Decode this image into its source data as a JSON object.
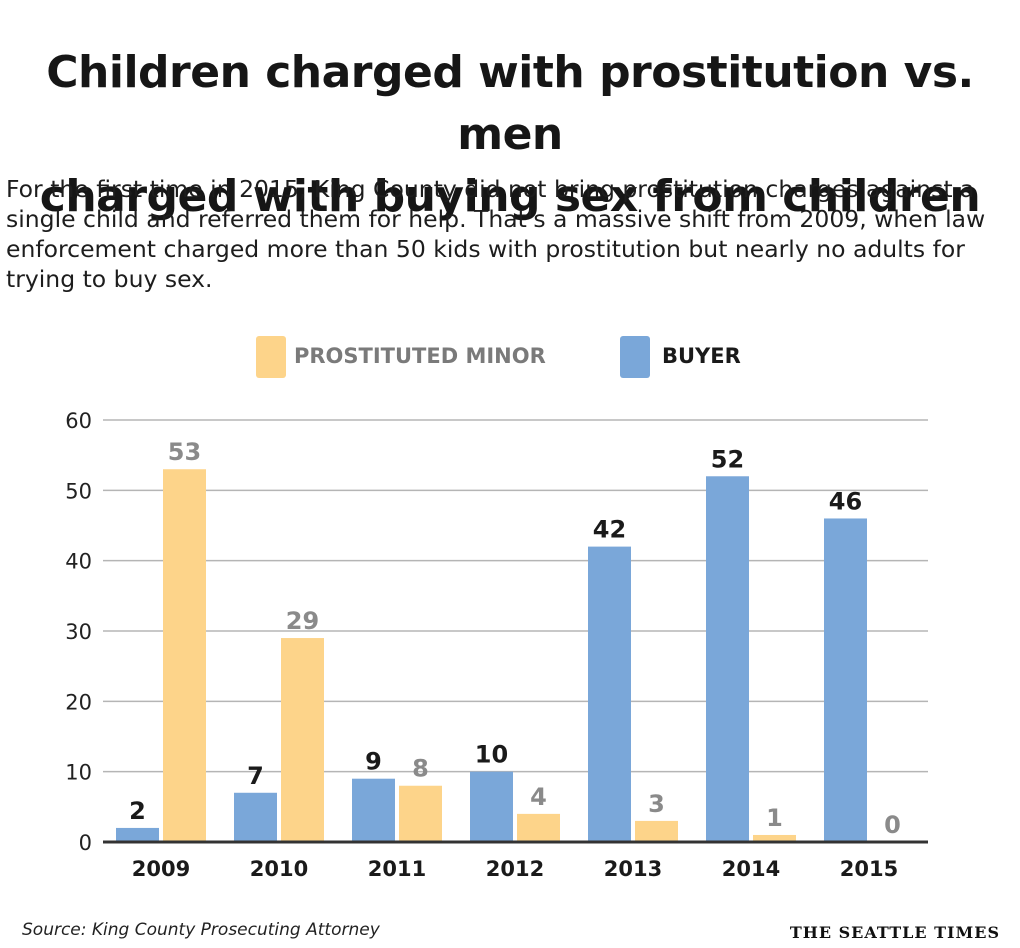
{
  "header": {
    "title_line1": "Children charged with prostitution vs. men",
    "title_line2": "charged with buying sex from children",
    "subtitle": "For the first time in 2015, King County did not bring prostitution charges against a single child and referred them for help. That's a massive shift from 2009, when law enforcement charged more than 50 kids with prostitution but nearly no adults for trying to buy sex."
  },
  "footer": {
    "source": "Source: King County Prosecuting Attorney",
    "brand": "THE SEATTLE TIMES"
  },
  "colors": {
    "minor": "#fdd48a",
    "buyer": "#7aa7d9",
    "minor_label": "#8a8a8a",
    "buyer_label": "#1a1a1a",
    "grid": "#b5b5b5",
    "axis": "#333333"
  },
  "chart_data": {
    "type": "bar",
    "title": "Children charged with prostitution vs. men charged with buying sex from children",
    "categories": [
      "2009",
      "2010",
      "2011",
      "2012",
      "2013",
      "2014",
      "2015"
    ],
    "series": [
      {
        "name": "BUYER",
        "values": [
          2,
          7,
          9,
          10,
          42,
          52,
          46
        ]
      },
      {
        "name": "PROSTITUTED MINOR",
        "values": [
          53,
          29,
          8,
          4,
          3,
          1,
          0
        ]
      }
    ],
    "legend_order": [
      "PROSTITUTED MINOR",
      "BUYER"
    ],
    "yticks": [
      0,
      10,
      20,
      30,
      40,
      50,
      60
    ],
    "ylim": [
      0,
      60
    ],
    "xlabel": "",
    "ylabel": "",
    "grid": true,
    "legend_position": "top"
  }
}
